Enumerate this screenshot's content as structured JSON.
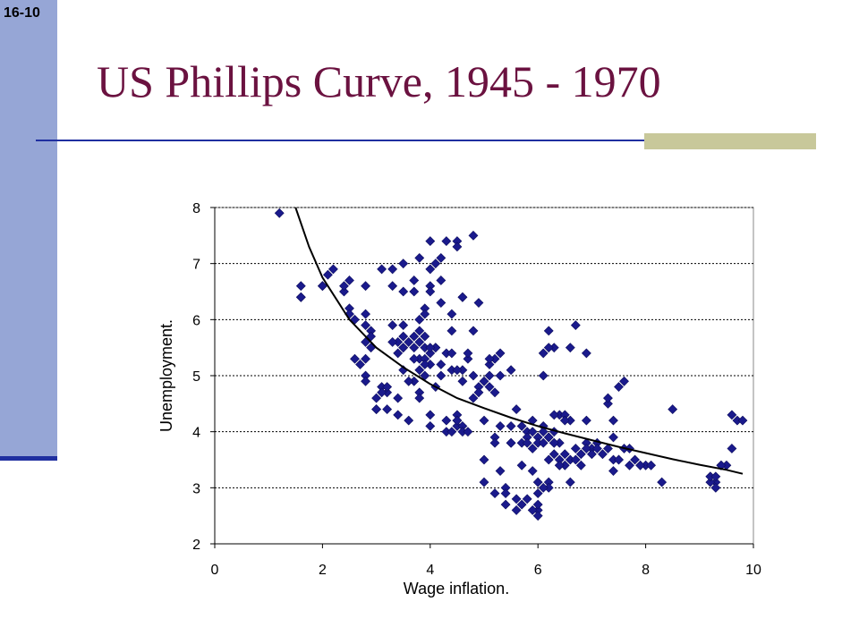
{
  "slide": {
    "number": "16-10",
    "title": "US Phillips Curve, 1945 - 1970"
  },
  "chart_data": {
    "type": "scatter",
    "title": "",
    "xlabel": "Wage inflation.",
    "ylabel": "Unemployment.",
    "xlim": [
      0,
      10
    ],
    "ylim": [
      2,
      8
    ],
    "xticks": [
      0,
      2,
      4,
      6,
      8,
      10
    ],
    "yticks": [
      2,
      3,
      4,
      5,
      6,
      7,
      8
    ],
    "grid": "horizontal dashed",
    "marker": "diamond",
    "colors": {
      "points": "#1a1a8c",
      "curve": "#000000"
    },
    "points": [
      [
        1.2,
        7.9
      ],
      [
        1.6,
        6.6
      ],
      [
        1.6,
        6.4
      ],
      [
        2.0,
        6.6
      ],
      [
        2.1,
        6.8
      ],
      [
        2.4,
        6.5
      ],
      [
        2.5,
        6.7
      ],
      [
        2.5,
        6.2
      ],
      [
        2.5,
        6.1
      ],
      [
        2.6,
        5.3
      ],
      [
        2.8,
        6.6
      ],
      [
        2.8,
        6.1
      ],
      [
        2.8,
        5.9
      ],
      [
        2.8,
        5.6
      ],
      [
        2.8,
        5.3
      ],
      [
        2.8,
        5.0
      ],
      [
        2.8,
        4.9
      ],
      [
        2.9,
        5.8
      ],
      [
        2.9,
        5.7
      ],
      [
        3.0,
        4.4
      ],
      [
        3.0,
        4.6
      ],
      [
        3.1,
        6.9
      ],
      [
        3.1,
        4.8
      ],
      [
        3.2,
        4.4
      ],
      [
        3.2,
        4.7
      ],
      [
        3.3,
        6.9
      ],
      [
        3.3,
        6.6
      ],
      [
        3.3,
        5.9
      ],
      [
        3.4,
        5.6
      ],
      [
        3.4,
        4.3
      ],
      [
        3.4,
        4.6
      ],
      [
        3.4,
        5.4
      ],
      [
        3.5,
        7.0
      ],
      [
        3.5,
        6.5
      ],
      [
        3.5,
        5.9
      ],
      [
        3.5,
        5.7
      ],
      [
        3.5,
        5.5
      ],
      [
        3.5,
        5.1
      ],
      [
        3.6,
        5.6
      ],
      [
        3.6,
        4.2
      ],
      [
        3.7,
        6.7
      ],
      [
        3.7,
        5.7
      ],
      [
        3.7,
        5.5
      ],
      [
        3.7,
        4.9
      ],
      [
        3.8,
        7.1
      ],
      [
        3.8,
        6.0
      ],
      [
        3.8,
        5.8
      ],
      [
        3.8,
        5.6
      ],
      [
        3.8,
        5.3
      ],
      [
        3.8,
        5.1
      ],
      [
        3.8,
        4.7
      ],
      [
        3.9,
        6.2
      ],
      [
        3.9,
        5.7
      ],
      [
        3.9,
        5.5
      ],
      [
        3.9,
        5.3
      ],
      [
        3.9,
        5.0
      ],
      [
        4.0,
        7.4
      ],
      [
        4.0,
        6.9
      ],
      [
        4.0,
        6.6
      ],
      [
        4.0,
        5.4
      ],
      [
        4.0,
        5.2
      ],
      [
        4.0,
        4.3
      ],
      [
        4.0,
        4.1
      ],
      [
        4.1,
        7.0
      ],
      [
        4.1,
        5.5
      ],
      [
        4.1,
        5.5
      ],
      [
        4.2,
        7.1
      ],
      [
        4.2,
        6.7
      ],
      [
        4.2,
        5.2
      ],
      [
        4.3,
        7.4
      ],
      [
        4.3,
        5.4
      ],
      [
        4.3,
        4.2
      ],
      [
        4.3,
        4.0
      ],
      [
        4.4,
        6.1
      ],
      [
        4.4,
        5.8
      ],
      [
        4.4,
        5.1
      ],
      [
        4.5,
        7.4
      ],
      [
        4.5,
        7.3
      ],
      [
        4.5,
        4.3
      ],
      [
        4.5,
        4.2
      ],
      [
        4.5,
        4.1
      ],
      [
        4.6,
        6.4
      ],
      [
        4.6,
        5.1
      ],
      [
        4.6,
        4.1
      ],
      [
        4.6,
        4.0
      ],
      [
        4.7,
        5.3
      ],
      [
        4.7,
        5.4
      ],
      [
        4.7,
        4.0
      ],
      [
        4.8,
        7.5
      ],
      [
        4.8,
        5.8
      ],
      [
        4.8,
        5.0
      ],
      [
        4.9,
        6.3
      ],
      [
        4.9,
        4.8
      ],
      [
        5.0,
        3.5
      ],
      [
        5.0,
        3.1
      ],
      [
        5.0,
        4.2
      ],
      [
        5.1,
        5.2
      ],
      [
        5.1,
        5.0
      ],
      [
        5.1,
        4.8
      ],
      [
        5.2,
        5.3
      ],
      [
        5.2,
        4.7
      ],
      [
        5.2,
        3.9
      ],
      [
        5.2,
        3.8
      ],
      [
        5.2,
        2.9
      ],
      [
        5.3,
        5.4
      ],
      [
        5.3,
        4.1
      ],
      [
        5.3,
        3.3
      ],
      [
        5.4,
        3.0
      ],
      [
        5.4,
        2.9
      ],
      [
        5.4,
        2.7
      ],
      [
        5.5,
        5.1
      ],
      [
        5.5,
        3.8
      ],
      [
        5.6,
        4.4
      ],
      [
        5.6,
        2.6
      ],
      [
        5.7,
        4.1
      ],
      [
        5.7,
        3.8
      ],
      [
        5.7,
        3.4
      ],
      [
        5.7,
        2.7
      ],
      [
        5.8,
        4.0
      ],
      [
        5.8,
        3.9
      ],
      [
        5.8,
        2.8
      ],
      [
        5.9,
        4.2
      ],
      [
        5.9,
        4.0
      ],
      [
        5.9,
        3.7
      ],
      [
        6.0,
        3.9
      ],
      [
        6.0,
        3.8
      ],
      [
        6.0,
        3.1
      ],
      [
        6.0,
        2.9
      ],
      [
        6.0,
        2.6
      ],
      [
        6.0,
        2.7
      ],
      [
        6.1,
        4.1
      ],
      [
        6.1,
        4.0
      ],
      [
        6.1,
        3.8
      ],
      [
        6.2,
        3.9
      ],
      [
        6.2,
        3.5
      ],
      [
        6.2,
        3.1
      ],
      [
        6.2,
        3.0
      ],
      [
        6.3,
        4.0
      ],
      [
        6.3,
        3.8
      ],
      [
        6.3,
        3.6
      ],
      [
        6.4,
        4.3
      ],
      [
        6.4,
        3.8
      ],
      [
        6.4,
        3.4
      ],
      [
        6.5,
        4.3
      ],
      [
        6.5,
        3.4
      ],
      [
        6.6,
        4.2
      ],
      [
        6.6,
        3.5
      ],
      [
        6.6,
        3.1
      ],
      [
        6.7,
        5.9
      ],
      [
        6.7,
        3.5
      ],
      [
        6.8,
        3.4
      ],
      [
        6.9,
        4.2
      ],
      [
        6.9,
        3.8
      ],
      [
        7.0,
        3.7
      ],
      [
        7.1,
        3.8
      ],
      [
        7.2,
        3.6
      ],
      [
        7.3,
        3.7
      ],
      [
        7.4,
        3.5
      ],
      [
        7.4,
        3.3
      ],
      [
        7.5,
        4.8
      ],
      [
        7.6,
        4.9
      ],
      [
        7.6,
        3.7
      ],
      [
        7.7,
        3.4
      ],
      [
        7.8,
        3.5
      ],
      [
        8.0,
        3.4
      ],
      [
        8.1,
        3.4
      ],
      [
        8.3,
        3.1
      ],
      [
        8.5,
        4.4
      ],
      [
        9.2,
        3.2
      ],
      [
        9.3,
        3.1
      ],
      [
        9.3,
        3.0
      ],
      [
        9.4,
        3.4
      ],
      [
        9.5,
        3.4
      ],
      [
        9.6,
        4.3
      ],
      [
        9.7,
        4.2
      ],
      [
        9.8,
        4.2
      ],
      [
        9.6,
        3.7
      ],
      [
        9.2,
        3.1
      ],
      [
        7.9,
        3.4
      ],
      [
        6.9,
        5.4
      ],
      [
        6.6,
        5.5
      ],
      [
        6.3,
        5.5
      ],
      [
        6.3,
        4.3
      ],
      [
        6.1,
        5.4
      ],
      [
        6.1,
        5.0
      ],
      [
        6.2,
        5.5
      ],
      [
        6.2,
        5.8
      ],
      [
        6.5,
        4.2
      ],
      [
        7.3,
        4.5
      ],
      [
        7.3,
        4.6
      ],
      [
        7.4,
        4.2
      ],
      [
        7.4,
        3.9
      ],
      [
        7.5,
        3.5
      ],
      [
        7.0,
        3.6
      ],
      [
        6.8,
        3.6
      ],
      [
        6.7,
        3.7
      ],
      [
        6.5,
        3.6
      ],
      [
        6.4,
        3.5
      ],
      [
        5.8,
        3.8
      ],
      [
        5.5,
        4.1
      ],
      [
        5.9,
        3.3
      ],
      [
        6.1,
        3.0
      ],
      [
        6.0,
        2.5
      ],
      [
        5.6,
        2.8
      ],
      [
        5.9,
        2.6
      ],
      [
        5.5,
        3.8
      ],
      [
        5.3,
        5.0
      ],
      [
        5.0,
        4.9
      ],
      [
        4.9,
        4.7
      ],
      [
        4.8,
        4.6
      ],
      [
        4.6,
        4.9
      ],
      [
        4.5,
        5.1
      ],
      [
        4.5,
        4.2
      ],
      [
        4.4,
        5.4
      ],
      [
        4.4,
        4.0
      ],
      [
        4.2,
        5.0
      ],
      [
        4.1,
        4.8
      ],
      [
        4.0,
        5.5
      ],
      [
        3.9,
        5.2
      ],
      [
        3.8,
        4.6
      ],
      [
        3.7,
        5.3
      ],
      [
        3.6,
        4.9
      ],
      [
        3.5,
        5.5
      ],
      [
        3.3,
        5.6
      ],
      [
        3.2,
        4.8
      ],
      [
        3.1,
        4.7
      ],
      [
        3.0,
        4.4
      ],
      [
        2.9,
        5.5
      ],
      [
        2.7,
        5.2
      ],
      [
        2.6,
        6.0
      ],
      [
        2.4,
        6.6
      ],
      [
        2.2,
        6.9
      ],
      [
        2.0,
        6.6
      ],
      [
        1.6,
        6.4
      ],
      [
        3.7,
        6.5
      ],
      [
        3.9,
        6.1
      ],
      [
        4.0,
        6.5
      ],
      [
        4.2,
        6.3
      ],
      [
        4.6,
        6.4
      ],
      [
        5.1,
        5.3
      ],
      [
        6.9,
        3.7
      ],
      [
        7.1,
        3.7
      ],
      [
        7.5,
        3.5
      ],
      [
        7.7,
        3.7
      ],
      [
        9.2,
        3.2
      ],
      [
        9.3,
        3.2
      ],
      [
        9.4,
        3.4
      ],
      [
        6.4,
        3.4
      ],
      [
        6.3,
        3.8
      ],
      [
        6.2,
        3.9
      ]
    ],
    "trend_curve": [
      [
        1.5,
        8.0
      ],
      [
        1.75,
        7.3
      ],
      [
        2.0,
        6.75
      ],
      [
        2.5,
        6.0
      ],
      [
        3.0,
        5.5
      ],
      [
        3.5,
        5.15
      ],
      [
        4.0,
        4.85
      ],
      [
        4.5,
        4.6
      ],
      [
        5.0,
        4.42
      ],
      [
        5.5,
        4.25
      ],
      [
        6.0,
        4.1
      ],
      [
        6.5,
        3.97
      ],
      [
        7.0,
        3.85
      ],
      [
        7.5,
        3.73
      ],
      [
        8.0,
        3.62
      ],
      [
        8.5,
        3.51
      ],
      [
        9.0,
        3.41
      ],
      [
        9.5,
        3.32
      ],
      [
        9.8,
        3.25
      ]
    ]
  }
}
